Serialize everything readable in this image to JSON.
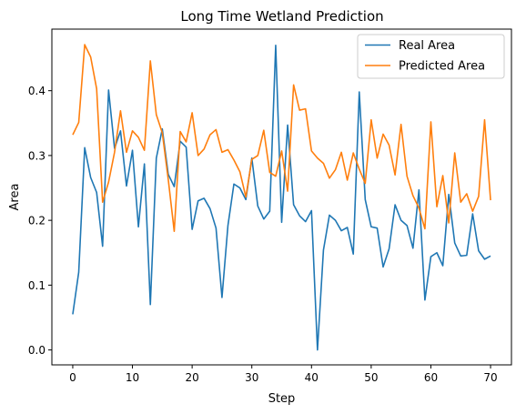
{
  "chart_data": {
    "type": "line",
    "title": "Long Time Wetland Prediction",
    "xlabel": "Step",
    "ylabel": "Area",
    "xlim": [
      -3.5,
      73.5
    ],
    "ylim": [
      -0.023,
      0.495
    ],
    "xticks": [
      0,
      10,
      20,
      30,
      40,
      50,
      60,
      70
    ],
    "yticks": [
      0.0,
      0.1,
      0.2,
      0.3,
      0.4
    ],
    "ytick_labels": [
      "0.0",
      "0.1",
      "0.2",
      "0.3",
      "0.4"
    ],
    "grid": false,
    "legend_position": "top-right",
    "series": [
      {
        "name": "Real Area",
        "color": "#1f77b4",
        "values": [
          0.055,
          0.12,
          0.312,
          0.266,
          0.243,
          0.16,
          0.401,
          0.311,
          0.338,
          0.253,
          0.308,
          0.19,
          0.287,
          0.07,
          0.296,
          0.341,
          0.271,
          0.252,
          0.322,
          0.313,
          0.186,
          0.23,
          0.234,
          0.218,
          0.188,
          0.081,
          0.192,
          0.256,
          0.25,
          0.232,
          0.296,
          0.222,
          0.202,
          0.214,
          0.47,
          0.197,
          0.347,
          0.224,
          0.207,
          0.198,
          0.215,
          0.0,
          0.154,
          0.208,
          0.2,
          0.184,
          0.189,
          0.148,
          0.398,
          0.232,
          0.19,
          0.188,
          0.128,
          0.156,
          0.224,
          0.2,
          0.192,
          0.157,
          0.247,
          0.077,
          0.144,
          0.15,
          0.13,
          0.24,
          0.165,
          0.145,
          0.146,
          0.21,
          0.153,
          0.14,
          0.145
        ]
      },
      {
        "name": "Predicted Area",
        "color": "#ff7f0e",
        "values": [
          0.332,
          0.351,
          0.471,
          0.452,
          0.403,
          0.228,
          0.259,
          0.305,
          0.369,
          0.305,
          0.338,
          0.328,
          0.308,
          0.446,
          0.363,
          0.335,
          0.263,
          0.183,
          0.337,
          0.321,
          0.366,
          0.3,
          0.31,
          0.332,
          0.34,
          0.305,
          0.309,
          0.293,
          0.275,
          0.236,
          0.294,
          0.3,
          0.339,
          0.274,
          0.268,
          0.307,
          0.245,
          0.409,
          0.37,
          0.372,
          0.307,
          0.296,
          0.288,
          0.265,
          0.278,
          0.305,
          0.262,
          0.304,
          0.279,
          0.257,
          0.355,
          0.296,
          0.333,
          0.316,
          0.27,
          0.348,
          0.268,
          0.238,
          0.219,
          0.187,
          0.352,
          0.221,
          0.269,
          0.196,
          0.304,
          0.228,
          0.241,
          0.214,
          0.237,
          0.355,
          0.231
        ]
      }
    ]
  }
}
